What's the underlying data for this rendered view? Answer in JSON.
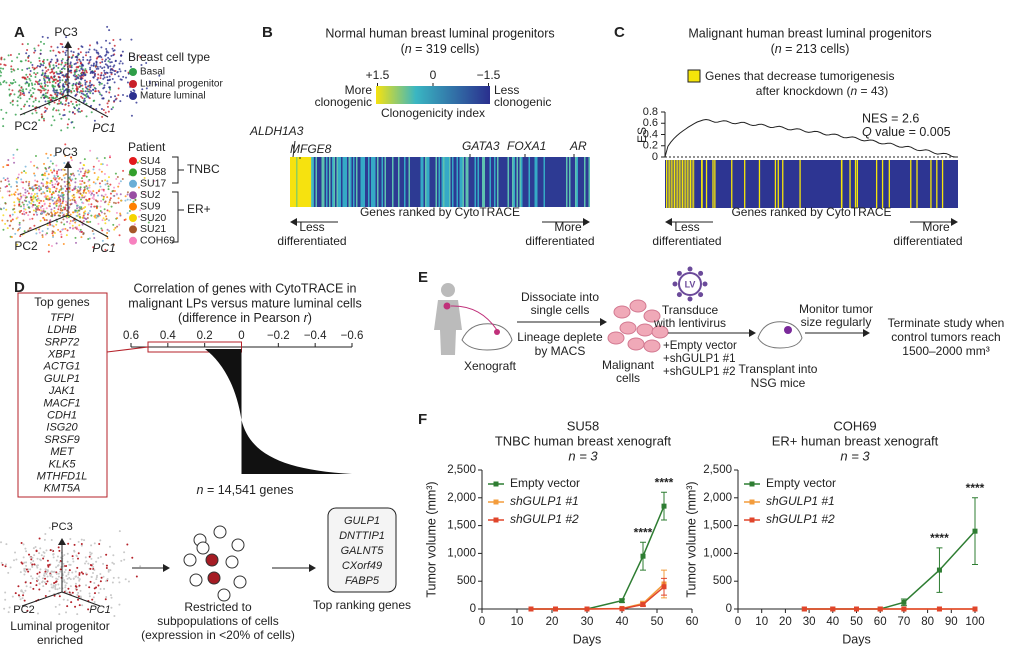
{
  "panel_a": {
    "letter": "A",
    "pc_top": [
      "PC3",
      "PC2",
      "PC1"
    ],
    "cell_type_title": "Breast cell type",
    "cell_types": [
      {
        "name": "Basal",
        "color": "#2e9e48"
      },
      {
        "name": "Luminal progenitor",
        "color": "#c8202a"
      },
      {
        "name": "Mature luminal",
        "color": "#2b2f8f"
      }
    ],
    "pc_bottom": [
      "PC3",
      "PC2",
      "PC1"
    ],
    "patient_title": "Patient",
    "patients": [
      {
        "name": "SU4",
        "color": "#e31a1c"
      },
      {
        "name": "SU58",
        "color": "#33a02c"
      },
      {
        "name": "SU17",
        "color": "#6baed6"
      },
      {
        "name": "SU2",
        "color": "#984ea3"
      },
      {
        "name": "SU9",
        "color": "#ff7f00"
      },
      {
        "name": "SU20",
        "color": "#f5d400"
      },
      {
        "name": "SU21",
        "color": "#a65628"
      },
      {
        "name": "COH69",
        "color": "#f781bf"
      }
    ],
    "groups": [
      "TNBC",
      "ER+"
    ]
  },
  "panel_b": {
    "letter": "B",
    "title": "Normal human breast luminal progenitors",
    "subtitle": [
      "(",
      "n",
      " = 319 cells)"
    ],
    "colorbar_ticks": [
      {
        "value": 1.5,
        "label": "+1.5"
      },
      0,
      {
        "value": -1.5,
        "label": "−1.5"
      }
    ],
    "colorbar_left": [
      "More",
      "clonogenic"
    ],
    "colorbar_right": [
      "Less",
      "clonogenic"
    ],
    "colorbar_label": "Clonogenicity index",
    "genes": [
      "ALDH1A3",
      "MFGE8",
      "GATA3",
      "FOXA1",
      "AR"
    ],
    "axis_label": "Genes ranked by CytoTRACE",
    "left_label": [
      "Less",
      "differentiated"
    ],
    "right_label": [
      "More",
      "differentiated"
    ]
  },
  "panel_c": {
    "letter": "C",
    "title": "Malignant human breast luminal progenitors",
    "subtitle": [
      "(",
      "n",
      " = 213 cells)"
    ],
    "legend": [
      "Genes that decrease tumorigenesis",
      "after knockdown (",
      "n",
      " = 43)"
    ],
    "legend_color": "#f5e50a",
    "nes": "NES = 2.6",
    "q": [
      "Q",
      " value = 0.005"
    ],
    "ylabel": "ES",
    "ylim": [
      0,
      0.8
    ],
    "yticks": [
      0,
      0.2,
      0.4,
      0.6,
      0.8
    ],
    "axis_label": "Genes ranked by CytoTRACE",
    "left_label": [
      "Less",
      "differentiated"
    ],
    "right_label": [
      "More",
      "differentiated"
    ]
  },
  "panel_d": {
    "letter": "D",
    "title": [
      "Correlation of genes with CytoTRACE in",
      "malignant LPs versus mature luminal cells",
      "(difference in Pearson ",
      "r",
      ")"
    ],
    "xlim": [
      0.6,
      -0.6
    ],
    "xticks": [
      0.6,
      0.4,
      0.2,
      0,
      {
        "value": -0.2,
        "label": "−0.2"
      },
      {
        "value": -0.4,
        "label": "−0.4"
      },
      {
        "value": -0.6,
        "label": "−0.6"
      }
    ],
    "top_genes_title": "Top genes",
    "top_genes": [
      "TFPI",
      "LDHB",
      "SRP72",
      "XBP1",
      "ACTG1",
      "GULP1",
      "JAK1",
      "MACF1",
      "CDH1",
      "ISG20",
      "SRSF9",
      "MET",
      "KLK5",
      "MTHFD1L",
      "KMT5A"
    ],
    "n_genes": [
      "n",
      " = 14,541 genes"
    ],
    "pc": [
      "PC3",
      "PC2",
      "PC1"
    ],
    "enriched": [
      "Luminal progenitor",
      "enriched"
    ],
    "restricted": [
      "Restricted to",
      "subpopulations of cells",
      "(expression in <20% of cells)"
    ],
    "ranking_genes": [
      "GULP1",
      "DNTTIP1",
      "GALNT5",
      "CXorf49",
      "FABP5"
    ],
    "ranking_title": "Top ranking genes"
  },
  "panel_e": {
    "letter": "E",
    "xenograft": "Xenograft",
    "dissociate": [
      "Dissociate into",
      "single cells"
    ],
    "lineage": [
      "Lineage deplete",
      "by MACS"
    ],
    "malignant": [
      "Malignant",
      "cells"
    ],
    "lv": "LV",
    "transduce": [
      "Transduce",
      "with lentivirus"
    ],
    "conditions": [
      "+Empty vector",
      "+shGULP1 #1",
      "+shGULP1 #2"
    ],
    "transplant": [
      "Transplant into",
      "NSG mice"
    ],
    "monitor": [
      "Monitor tumor",
      "size regularly"
    ],
    "terminate": [
      "Terminate study when",
      "control tumors reach",
      "1500–2000 mm³"
    ]
  },
  "panel_f": {
    "letter": "F"
  },
  "chart_data": [
    {
      "type": "line",
      "title": [
        "SU58",
        "TNBC human breast xenograft",
        "n = 3"
      ],
      "xlabel": "Days",
      "ylabel": "Tumor volume (mm³)",
      "x": [
        14,
        21,
        30,
        40,
        46,
        52
      ],
      "xlim": [
        0,
        60
      ],
      "xticks": [
        0,
        10,
        20,
        30,
        40,
        50,
        60
      ],
      "ylim": [
        0,
        2500
      ],
      "yticks": [
        0,
        500,
        {
          "value": 1000,
          "label": "1,000"
        },
        {
          "value": 1500,
          "label": "1,500"
        },
        {
          "value": 2000,
          "label": "2,000"
        },
        {
          "value": 2500,
          "label": "2,500"
        }
      ],
      "series": [
        {
          "name": "Empty vector",
          "color": "#2e7d32",
          "values": [
            0,
            0,
            0,
            150,
            950,
            1850
          ],
          "errors": [
            0,
            0,
            0,
            30,
            250,
            250
          ]
        },
        {
          "name": "shGULP1 #1",
          "color": "#f39c3c",
          "values": [
            0,
            0,
            0,
            10,
            100,
            450
          ],
          "errors": [
            0,
            0,
            0,
            10,
            40,
            250
          ]
        },
        {
          "name": "shGULP1 #2",
          "color": "#e0452b",
          "values": [
            0,
            0,
            0,
            5,
            80,
            400
          ],
          "errors": [
            0,
            0,
            0,
            5,
            30,
            150
          ]
        }
      ],
      "annotations": [
        {
          "text": "****",
          "x": 46
        },
        {
          "text": "****",
          "x": 52
        }
      ]
    },
    {
      "type": "line",
      "title": [
        "COH69",
        "ER+ human breast xenograft",
        "n = 3"
      ],
      "xlabel": "Days",
      "ylabel": "Tumor volume (mm³)",
      "x": [
        28,
        40,
        50,
        60,
        70,
        85,
        100
      ],
      "xlim": [
        0,
        100
      ],
      "xticks": [
        0,
        10,
        20,
        30,
        40,
        50,
        60,
        70,
        80,
        90,
        100
      ],
      "ylim": [
        0,
        2500
      ],
      "yticks": [
        0,
        500,
        {
          "value": 1000,
          "label": "1,000"
        },
        {
          "value": 1500,
          "label": "1,500"
        },
        {
          "value": 2000,
          "label": "2,000"
        },
        {
          "value": 2500,
          "label": "2,500"
        }
      ],
      "series": [
        {
          "name": "Empty vector",
          "color": "#2e7d32",
          "values": [
            0,
            0,
            0,
            0,
            120,
            700,
            1400
          ],
          "errors": [
            0,
            0,
            0,
            0,
            60,
            400,
            600
          ]
        },
        {
          "name": "shGULP1 #1",
          "color": "#f39c3c",
          "values": [
            0,
            0,
            0,
            0,
            0,
            0,
            0
          ],
          "errors": [
            0,
            0,
            0,
            0,
            0,
            0,
            0
          ]
        },
        {
          "name": "shGULP1 #2",
          "color": "#e0452b",
          "values": [
            0,
            0,
            0,
            0,
            0,
            0,
            0
          ],
          "errors": [
            0,
            0,
            0,
            0,
            0,
            0,
            0
          ]
        }
      ],
      "annotations": [
        {
          "text": "****",
          "x": 85
        },
        {
          "text": "****",
          "x": 100
        }
      ]
    }
  ]
}
